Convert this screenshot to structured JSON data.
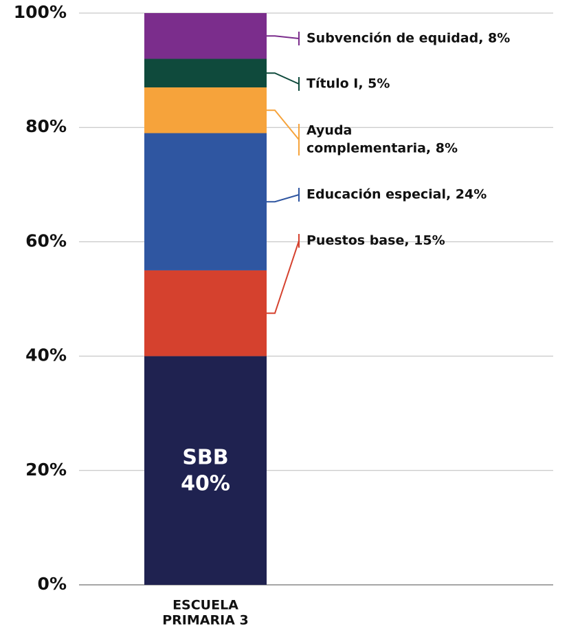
{
  "chart_data": {
    "type": "stacked_bar",
    "categories": [
      [
        "ESCUELA",
        "PRIMARIA 3"
      ]
    ],
    "ylim": [
      0,
      100
    ],
    "yticks": [
      {
        "value": 0,
        "label": "0%"
      },
      {
        "value": 20,
        "label": "20%"
      },
      {
        "value": 40,
        "label": "40%"
      },
      {
        "value": 60,
        "label": "60%"
      },
      {
        "value": 80,
        "label": "80%"
      },
      {
        "value": 100,
        "label": "100%"
      }
    ],
    "grid": true,
    "series": [
      {
        "name": "SBB",
        "color": "#1f2250",
        "values": [
          40
        ],
        "value_labels": [
          "40%"
        ]
      },
      {
        "label": [
          "Puestos base, 15%"
        ],
        "color": "#d5412e",
        "values": [
          15
        ]
      },
      {
        "label": [
          "Educación especial, 24%"
        ],
        "color": "#2f56a1",
        "values": [
          24
        ]
      },
      {
        "label": [
          "Ayuda",
          "complementaria, 8%"
        ],
        "color": "#f6a33b",
        "values": [
          8
        ]
      },
      {
        "label": [
          "Título I, 5%"
        ],
        "color": "#0f4a3c",
        "values": [
          5
        ]
      },
      {
        "label": [
          "Subvención de equidad, 8%"
        ],
        "color": "#7b2d8c",
        "values": [
          8
        ]
      }
    ]
  }
}
